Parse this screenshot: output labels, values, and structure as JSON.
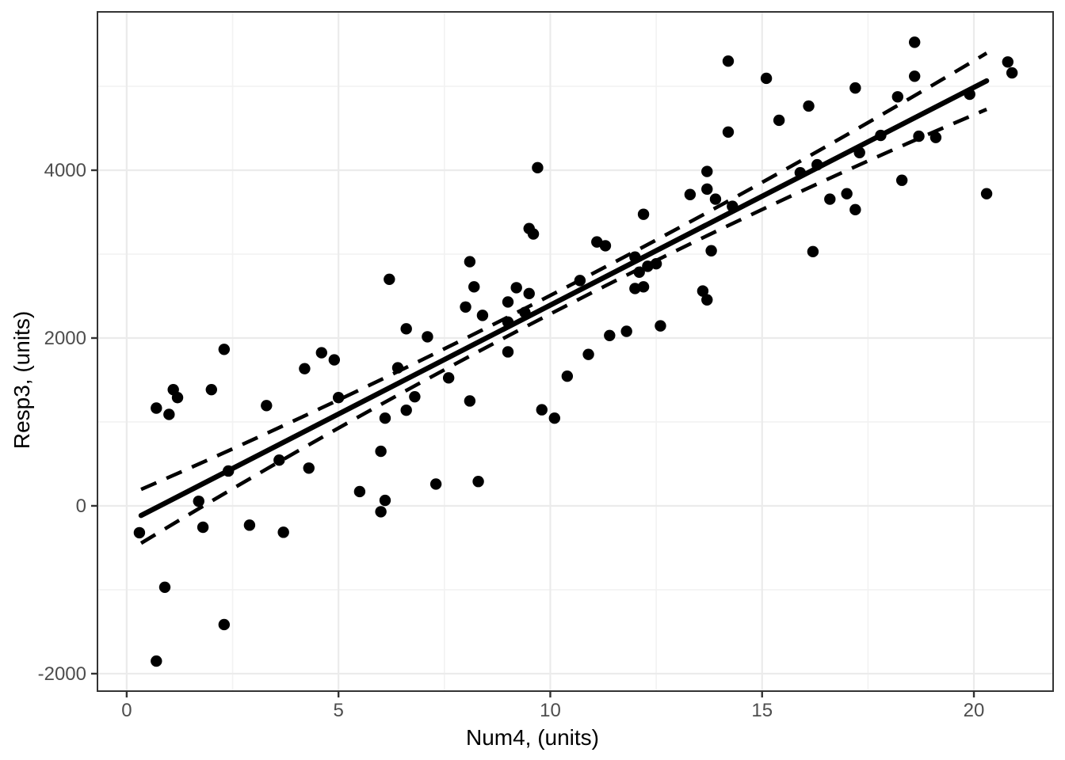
{
  "figure": {
    "background": "#ffffff",
    "point_color": "#000000",
    "line_color": "#000000",
    "grid_major_color": "#ebebeb",
    "grid_minor_color": "#f2f2f2",
    "panel_border_color": "#333333",
    "tick_color": "#333333",
    "tick_label_color": "#4d4d4d"
  },
  "chart_data": {
    "type": "scatter",
    "title": "",
    "xlabel": "Num4, (units)",
    "ylabel": "Resp3, (units)",
    "xlim": [
      -0.69,
      21.87
    ],
    "ylim": [
      -2208,
      5887
    ],
    "x_ticks": [
      0,
      5,
      10,
      15,
      20
    ],
    "y_ticks": [
      -2000,
      0,
      2000,
      4000
    ],
    "x_minor": [
      2.5,
      7.5,
      12.5,
      17.5
    ],
    "y_minor": [
      -1000,
      1000,
      3000,
      5000
    ],
    "grid": true,
    "legend": "none",
    "points": [
      [
        0.3,
        -320
      ],
      [
        0.7,
        -1850
      ],
      [
        0.7,
        1165
      ],
      [
        0.9,
        -970
      ],
      [
        1.0,
        1090
      ],
      [
        1.1,
        1385
      ],
      [
        1.2,
        1290
      ],
      [
        1.7,
        55
      ],
      [
        1.8,
        -255
      ],
      [
        2.0,
        1385
      ],
      [
        2.3,
        1865
      ],
      [
        2.3,
        -1415
      ],
      [
        2.4,
        415
      ],
      [
        2.9,
        -230
      ],
      [
        3.3,
        1195
      ],
      [
        3.6,
        545
      ],
      [
        3.7,
        -315
      ],
      [
        4.2,
        1635
      ],
      [
        4.3,
        450
      ],
      [
        4.6,
        1825
      ],
      [
        4.9,
        1740
      ],
      [
        5.0,
        1290
      ],
      [
        5.5,
        170
      ],
      [
        6.0,
        -70
      ],
      [
        6.0,
        650
      ],
      [
        6.1,
        65
      ],
      [
        6.1,
        1045
      ],
      [
        6.2,
        2700
      ],
      [
        6.4,
        1645
      ],
      [
        6.6,
        1140
      ],
      [
        6.6,
        2110
      ],
      [
        6.8,
        1300
      ],
      [
        7.1,
        2015
      ],
      [
        7.3,
        260
      ],
      [
        7.6,
        1525
      ],
      [
        8.0,
        2370
      ],
      [
        8.1,
        1250
      ],
      [
        8.1,
        2910
      ],
      [
        8.2,
        2610
      ],
      [
        8.3,
        290
      ],
      [
        8.4,
        2270
      ],
      [
        9.0,
        1835
      ],
      [
        9.0,
        2190
      ],
      [
        9.0,
        2430
      ],
      [
        9.2,
        2600
      ],
      [
        9.4,
        2305
      ],
      [
        9.5,
        2530
      ],
      [
        9.5,
        3305
      ],
      [
        9.6,
        3240
      ],
      [
        9.7,
        4030
      ],
      [
        9.8,
        1145
      ],
      [
        10.1,
        1045
      ],
      [
        10.4,
        1545
      ],
      [
        10.7,
        2685
      ],
      [
        10.9,
        1805
      ],
      [
        11.1,
        3145
      ],
      [
        11.3,
        3100
      ],
      [
        11.4,
        2030
      ],
      [
        11.8,
        2080
      ],
      [
        12.0,
        2590
      ],
      [
        12.0,
        2965
      ],
      [
        12.1,
        2785
      ],
      [
        12.2,
        2610
      ],
      [
        12.2,
        3475
      ],
      [
        12.3,
        2855
      ],
      [
        12.5,
        2885
      ],
      [
        12.6,
        2145
      ],
      [
        13.3,
        3710
      ],
      [
        13.6,
        2560
      ],
      [
        13.7,
        2455
      ],
      [
        13.7,
        3775
      ],
      [
        13.7,
        3985
      ],
      [
        13.8,
        3040
      ],
      [
        13.9,
        3655
      ],
      [
        14.2,
        4455
      ],
      [
        14.2,
        5300
      ],
      [
        14.3,
        3570
      ],
      [
        15.1,
        5095
      ],
      [
        15.4,
        4595
      ],
      [
        15.9,
        3970
      ],
      [
        16.1,
        4765
      ],
      [
        16.2,
        3030
      ],
      [
        16.3,
        4065
      ],
      [
        16.6,
        3655
      ],
      [
        17.0,
        3720
      ],
      [
        17.2,
        3530
      ],
      [
        17.2,
        4980
      ],
      [
        17.3,
        4210
      ],
      [
        17.8,
        4415
      ],
      [
        18.2,
        4875
      ],
      [
        18.3,
        3880
      ],
      [
        18.6,
        5120
      ],
      [
        18.6,
        5525
      ],
      [
        18.7,
        4405
      ],
      [
        19.1,
        4390
      ],
      [
        19.9,
        4905
      ],
      [
        20.3,
        3720
      ],
      [
        20.8,
        5290
      ],
      [
        20.9,
        5160
      ]
    ],
    "regression_line": {
      "x1": 0.34,
      "y1": -115,
      "x2": 20.3,
      "y2": 5065
    },
    "conf_band_upper": {
      "x1": 0.34,
      "y1": 196,
      "xm": 10.3,
      "ym": 2585,
      "x2": 20.3,
      "y2": 5395
    },
    "conf_band_lower": {
      "x1": 0.34,
      "y1": -445,
      "xm": 10.3,
      "ym": 2365,
      "x2": 20.3,
      "y2": 4725
    }
  }
}
